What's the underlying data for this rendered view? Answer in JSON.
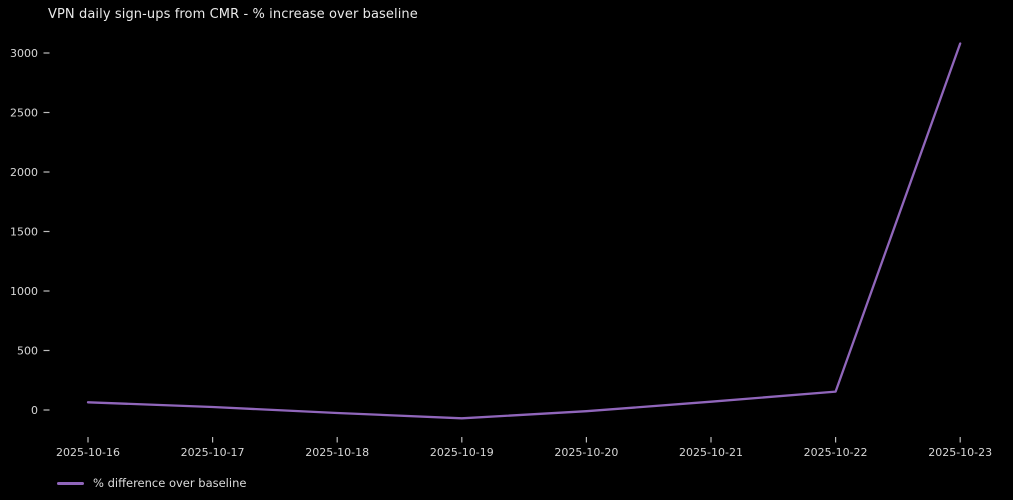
{
  "colors": {
    "background": "#000000",
    "line": "#9066bb",
    "title_text": "#e9e9e9",
    "tick_text": "#d6d6d6",
    "tick_mark": "#bdbdbd",
    "legend_text": "#dcdcdc"
  },
  "chart_data": {
    "type": "line",
    "title": "VPN daily sign-ups from CMR - % increase over baseline",
    "categories": [
      "2025-10-16",
      "2025-10-17",
      "2025-10-18",
      "2025-10-19",
      "2025-10-20",
      "2025-10-21",
      "2025-10-22",
      "2025-10-23"
    ],
    "series": [
      {
        "name": "% difference over baseline",
        "values": [
          65,
          25,
          -25,
          -70,
          -10,
          70,
          155,
          3080
        ],
        "color": "#9066bb"
      }
    ],
    "xlabel": "",
    "ylabel": "",
    "y_ticks": [
      0,
      500,
      1000,
      1500,
      2000,
      2500,
      3000
    ],
    "ylim": [
      -230,
      3240
    ],
    "grid": false,
    "legend_position": "bottom-left",
    "background": "#000000"
  }
}
